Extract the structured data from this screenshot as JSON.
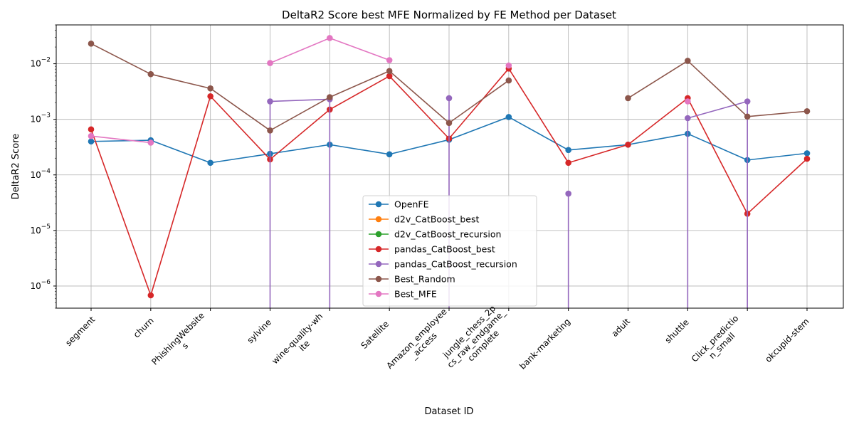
{
  "chart_data": {
    "type": "line",
    "title": "DeltaR2 Score best MFE Normalized by FE Method per Dataset",
    "xlabel": "Dataset ID",
    "ylabel": "DeltaR2 Score",
    "yscale": "log",
    "ylim": [
      4e-07,
      0.05
    ],
    "grid": true,
    "legend_position": "lower center",
    "categories": [
      "segment",
      "churn",
      "PhishingWebsites",
      "sylvine",
      "wine-quality-white",
      "Satellite",
      "Amazon_employee_access",
      "jungle_chess_2pcs_raw_endgame_complete",
      "bank-marketing",
      "adult",
      "shuttle",
      "Click_prediction_small",
      "okcupid-stem"
    ],
    "category_labels": [
      [
        "segment"
      ],
      [
        "churn"
      ],
      [
        "PhishingWebsite",
        "s"
      ],
      [
        "sylvine"
      ],
      [
        "wine-quality-wh",
        "ite"
      ],
      [
        "Satellite"
      ],
      [
        "Amazon_employee",
        "_access"
      ],
      [
        "jungle_chess_2p",
        "cs_raw_endgame_",
        "complete"
      ],
      [
        "bank-marketing"
      ],
      [
        "adult"
      ],
      [
        "shuttle"
      ],
      [
        "Click_predictio",
        "n_small"
      ],
      [
        "okcupid-stem"
      ]
    ],
    "y_ticks": [
      {
        "value": 1e-06,
        "base": "10",
        "exp": "−6"
      },
      {
        "value": 1e-05,
        "base": "10",
        "exp": "−5"
      },
      {
        "value": 0.0001,
        "base": "10",
        "exp": "−4"
      },
      {
        "value": 0.001,
        "base": "10",
        "exp": "−3"
      },
      {
        "value": 0.01,
        "base": "10",
        "exp": "−2"
      }
    ],
    "series": [
      {
        "name": "OpenFE",
        "color": "#1f77b4",
        "values": [
          0.0004,
          0.00042,
          0.000165,
          0.00024,
          0.00035,
          0.000235,
          0.00043,
          0.0011,
          0.00028,
          0.00035,
          0.00055,
          0.000185,
          0.000245
        ]
      },
      {
        "name": "d2v_CatBoost_best",
        "color": "#ff7f0e",
        "values": [
          null,
          null,
          null,
          null,
          null,
          null,
          null,
          null,
          null,
          null,
          null,
          null,
          null
        ]
      },
      {
        "name": "d2v_CatBoost_recursion",
        "color": "#2ca02c",
        "values": [
          null,
          null,
          null,
          null,
          null,
          null,
          null,
          null,
          null,
          null,
          null,
          null,
          null
        ]
      },
      {
        "name": "pandas_CatBoost_best",
        "color": "#d62728",
        "values": [
          0.00066,
          6.8e-07,
          0.0026,
          0.00019,
          0.0015,
          0.006,
          0.00045,
          0.0082,
          0.000165,
          0.00035,
          0.0024,
          2e-05,
          0.000195
        ]
      },
      {
        "name": "pandas_CatBoost_recursion",
        "color": "#9467bd",
        "values": [
          null,
          null,
          null,
          0.0021,
          0.0023,
          null,
          0.0024,
          null,
          4.6e-05,
          null,
          0.00105,
          0.0021,
          null
        ],
        "drops_to_axis_at": [
          3,
          4,
          6,
          8,
          10,
          11
        ]
      },
      {
        "name": "Best_Random",
        "color": "#8c564b",
        "values": [
          0.023,
          0.0065,
          0.0036,
          0.00063,
          0.0025,
          0.0074,
          0.00086,
          0.005,
          null,
          0.0024,
          0.0113,
          0.00112,
          0.0014
        ]
      },
      {
        "name": "Best_MFE",
        "color": "#e377c2",
        "values": [
          0.0005,
          0.00038,
          null,
          0.0103,
          0.029,
          0.0116,
          null,
          0.0093,
          null,
          null,
          0.0021,
          null,
          null
        ]
      }
    ]
  }
}
